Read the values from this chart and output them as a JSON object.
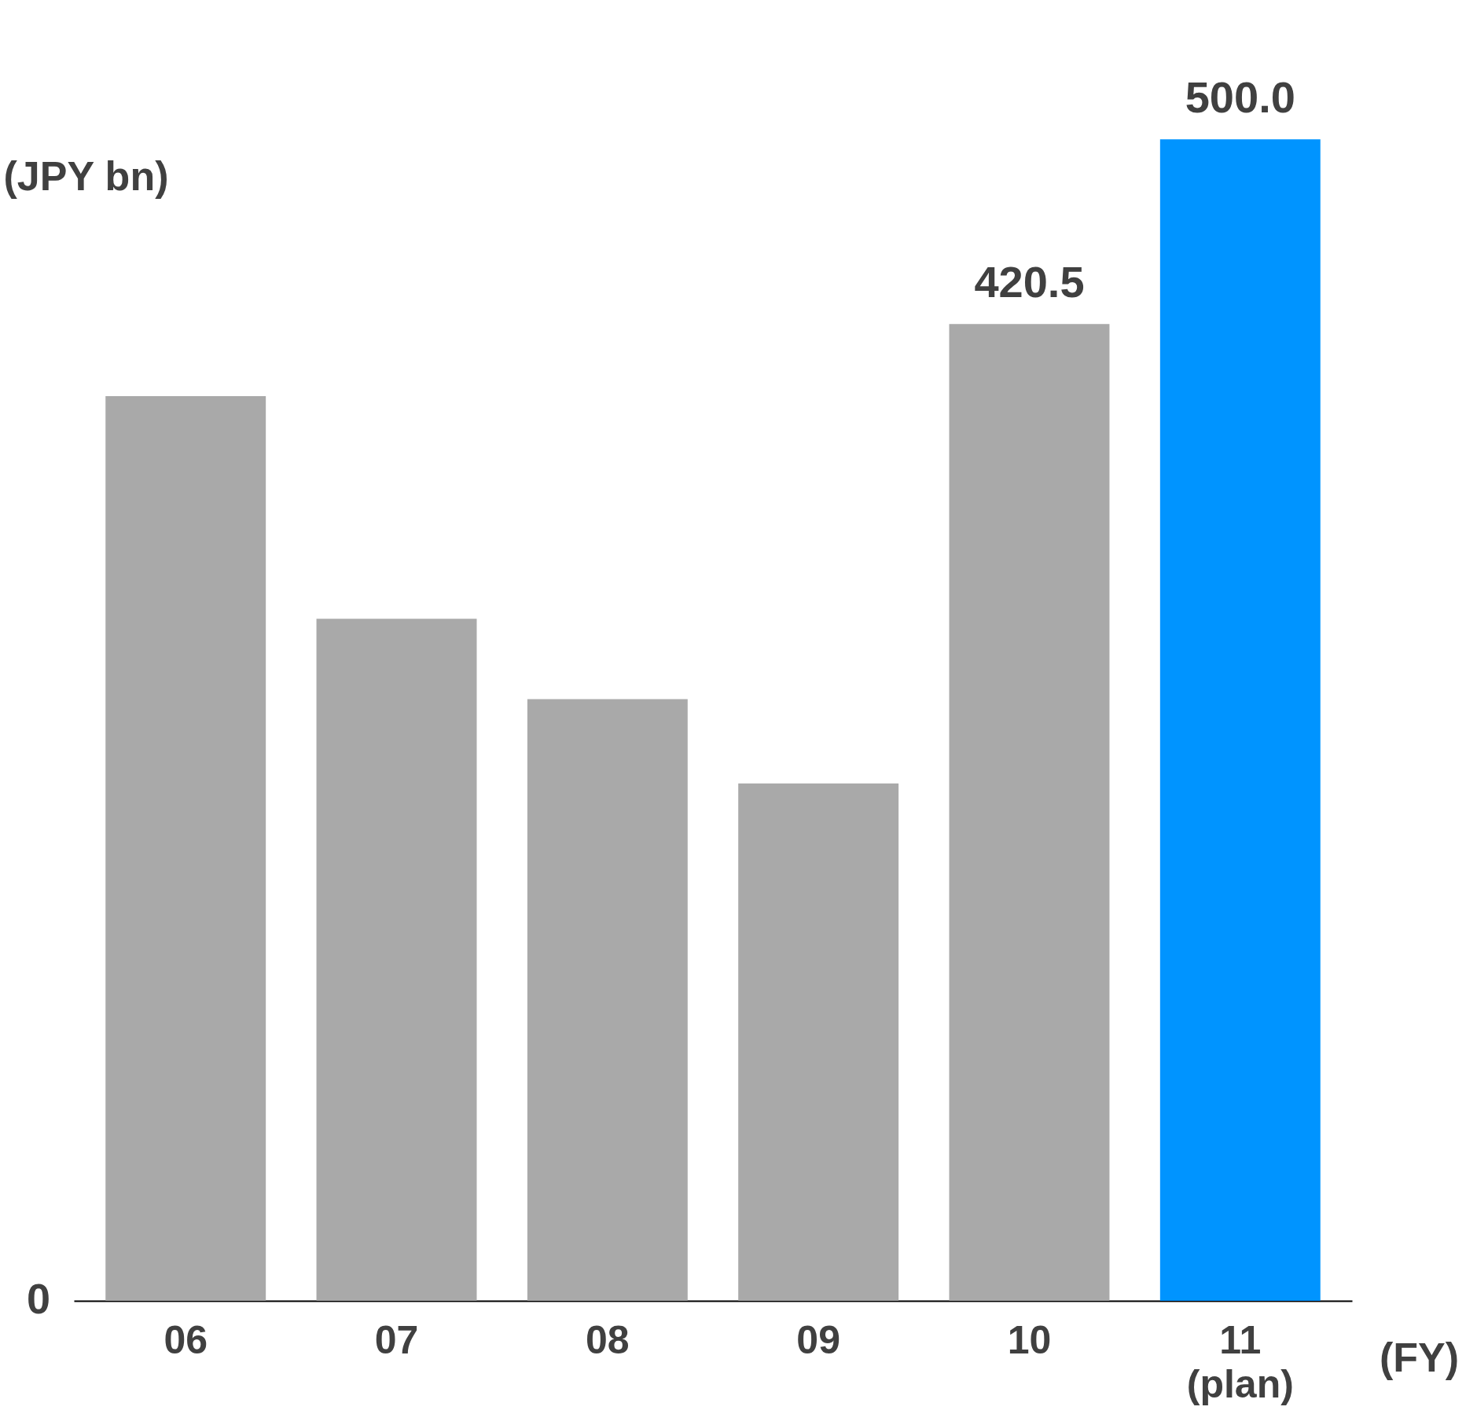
{
  "chart_data": {
    "type": "bar",
    "ylabel": "(JPY bn)",
    "xlabel": "(FY)",
    "ylim": [
      0,
      560
    ],
    "categories": [
      "06",
      "07",
      "08",
      "09",
      "10",
      "11\n(plan)"
    ],
    "values": [
      389.5,
      293.6,
      259,
      222.7,
      420.5,
      500.0
    ],
    "colors": [
      "#a9a9a9",
      "#a9a9a9",
      "#a9a9a9",
      "#a9a9a9",
      "#a9a9a9",
      "#0094ff"
    ],
    "value_labels": [
      null,
      null,
      null,
      null,
      "420.5",
      "500.0"
    ],
    "annotations": [
      "0"
    ]
  }
}
